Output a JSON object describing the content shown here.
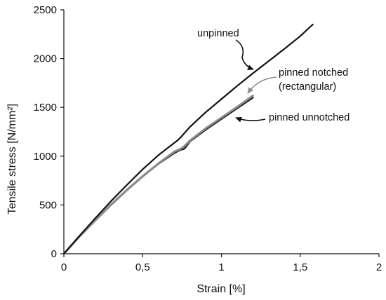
{
  "chart_data": {
    "type": "line",
    "title": "",
    "xlabel": "Strain [%]",
    "ylabel": "Tensile stress [N/mm²]",
    "xlim": [
      0,
      2
    ],
    "ylim": [
      0,
      2500
    ],
    "xticks": [
      {
        "value": 0,
        "label": "0"
      },
      {
        "value": 0.5,
        "label": "0,5"
      },
      {
        "value": 1,
        "label": "1"
      },
      {
        "value": 1.5,
        "label": "1,5"
      },
      {
        "value": 2,
        "label": "2"
      }
    ],
    "yticks": [
      {
        "value": 0,
        "label": "0"
      },
      {
        "value": 500,
        "label": "500"
      },
      {
        "value": 1000,
        "label": "1000"
      },
      {
        "value": 1500,
        "label": "1500"
      },
      {
        "value": 2000,
        "label": "2000"
      },
      {
        "value": 2500,
        "label": "2500"
      }
    ],
    "grid": false,
    "legend": "none",
    "series": [
      {
        "name": "unpinned",
        "color": "#111111",
        "x": [
          0,
          0.1,
          0.2,
          0.3,
          0.4,
          0.5,
          0.6,
          0.7,
          0.72,
          0.74,
          0.8,
          0.9,
          1.0,
          1.1,
          1.2,
          1.3,
          1.4,
          1.5,
          1.58
        ],
        "y": [
          0,
          185,
          365,
          540,
          705,
          865,
          1010,
          1135,
          1160,
          1190,
          1300,
          1450,
          1585,
          1720,
          1850,
          1975,
          2100,
          2230,
          2350
        ]
      },
      {
        "name": "pinned unnotched",
        "color": "#111111",
        "x": [
          0,
          0.1,
          0.2,
          0.3,
          0.4,
          0.5,
          0.6,
          0.7,
          0.74,
          0.75,
          0.76,
          0.77,
          0.8,
          0.9,
          1.0,
          1.1,
          1.2
        ],
        "y": [
          0,
          175,
          340,
          500,
          650,
          790,
          920,
          1030,
          1065,
          1068,
          1072,
          1085,
          1150,
          1270,
          1380,
          1490,
          1600
        ]
      },
      {
        "name": "pinned notched (rectangular)",
        "color": "#8c8c8c",
        "x": [
          0,
          0.1,
          0.2,
          0.3,
          0.4,
          0.5,
          0.6,
          0.7,
          0.74,
          0.76,
          0.8,
          0.9,
          1.0,
          1.1,
          1.2
        ],
        "y": [
          0,
          178,
          345,
          505,
          655,
          795,
          925,
          1045,
          1075,
          1095,
          1160,
          1285,
          1395,
          1505,
          1620
        ]
      }
    ],
    "annotations": [
      {
        "text": "unpinned",
        "series": "unpinned"
      },
      {
        "text_lines": [
          "pinned notched",
          "(rectangular)"
        ],
        "series": "pinned notched (rectangular)"
      },
      {
        "text": "pinned unnotched",
        "series": "pinned unnotched"
      }
    ]
  }
}
